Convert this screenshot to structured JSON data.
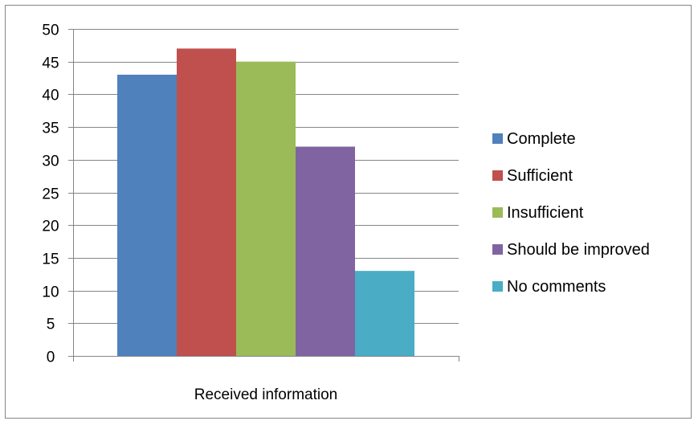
{
  "chart_data": {
    "type": "bar",
    "categories": [
      "Received information"
    ],
    "series": [
      {
        "name": "Complete",
        "values": [
          43
        ],
        "color": "#4F81BD"
      },
      {
        "name": "Sufficient",
        "values": [
          47
        ],
        "color": "#C0504D"
      },
      {
        "name": "Insufficient",
        "values": [
          45
        ],
        "color": "#9BBB59"
      },
      {
        "name": "Should be improved",
        "values": [
          32
        ],
        "color": "#8064A2"
      },
      {
        "name": "No comments",
        "values": [
          13
        ],
        "color": "#4BACC6"
      }
    ],
    "yticks": [
      "0",
      "5",
      "10",
      "15",
      "20",
      "25",
      "30",
      "35",
      "40",
      "45",
      "50"
    ],
    "ylim": [
      0,
      50
    ],
    "grid": true,
    "legend": "right",
    "title": "",
    "xlabel": "",
    "ylabel": ""
  }
}
